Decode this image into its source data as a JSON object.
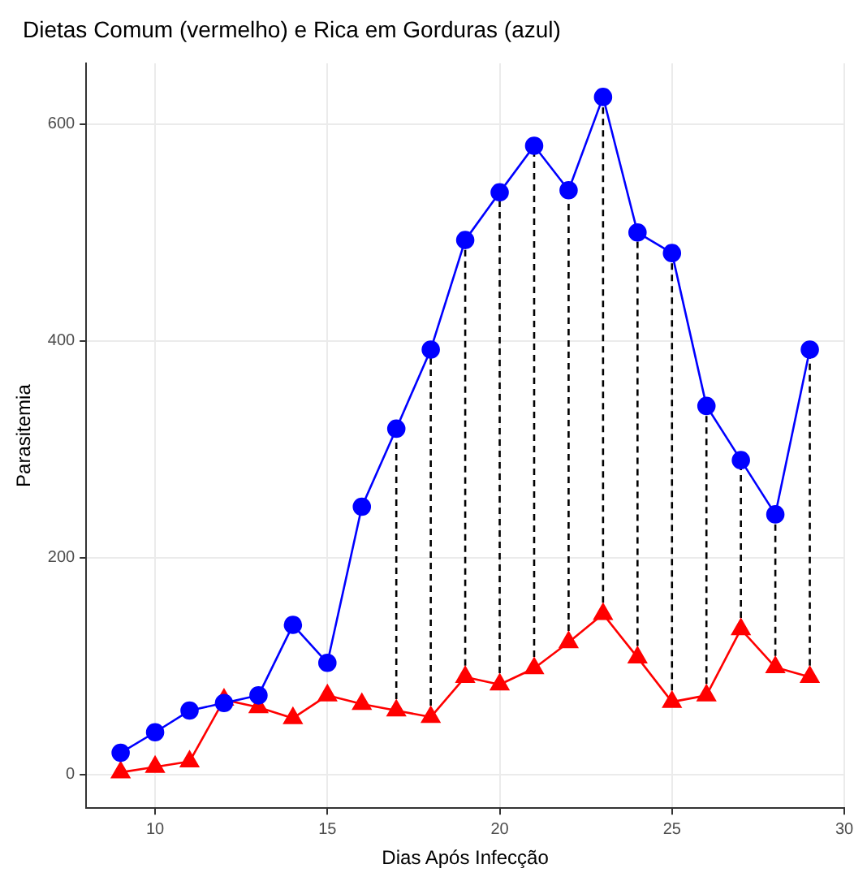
{
  "chart_data": {
    "type": "line",
    "title": "Dietas Comum (vermelho) e Rica em Gorduras (azul)",
    "xlabel": "Dias Após Infecção",
    "ylabel": "Parasitemia",
    "x": [
      9,
      10,
      11,
      12,
      13,
      14,
      15,
      16,
      17,
      18,
      19,
      20,
      21,
      22,
      23,
      24,
      25,
      26,
      27,
      28,
      29
    ],
    "xlim": [
      8,
      30
    ],
    "xticks": [
      10,
      15,
      20,
      25,
      30
    ],
    "ylim": [
      -31,
      656
    ],
    "yticks": [
      0,
      200,
      400,
      600
    ],
    "grid": true,
    "legend": false,
    "series": [
      {
        "color": "#0000ff",
        "marker": "circle",
        "values": [
          20,
          39,
          59,
          66,
          73,
          138,
          103,
          247,
          319,
          392,
          493,
          537,
          580,
          539,
          625,
          500,
          481,
          340,
          290,
          240,
          392
        ]
      },
      {
        "color": "#ff0000",
        "marker": "triangle",
        "values": [
          2,
          7,
          12,
          69,
          62,
          52,
          73,
          65,
          59,
          53,
          90,
          83,
          98,
          122,
          148,
          108,
          67,
          73,
          134,
          99,
          90
        ]
      },
      {
        "color": "#000000",
        "marker": "none",
        "line_style": "dashed",
        "x": [
          17,
          17
        ],
        "values": [
          59,
          319
        ]
      },
      {
        "color": "#000000",
        "marker": "none",
        "line_style": "dashed",
        "x": [
          18,
          18
        ],
        "values": [
          53,
          392
        ]
      },
      {
        "color": "#000000",
        "marker": "none",
        "line_style": "dashed",
        "x": [
          19,
          19
        ],
        "values": [
          90,
          493
        ]
      },
      {
        "color": "#000000",
        "marker": "none",
        "line_style": "dashed",
        "x": [
          20,
          20
        ],
        "values": [
          83,
          537
        ]
      },
      {
        "color": "#000000",
        "marker": "none",
        "line_style": "dashed",
        "x": [
          21,
          21
        ],
        "values": [
          98,
          580
        ]
      },
      {
        "color": "#000000",
        "marker": "none",
        "line_style": "dashed",
        "x": [
          22,
          22
        ],
        "values": [
          122,
          539
        ]
      },
      {
        "color": "#000000",
        "marker": "none",
        "line_style": "dashed",
        "x": [
          23,
          23
        ],
        "values": [
          148,
          625
        ]
      },
      {
        "color": "#000000",
        "marker": "none",
        "line_style": "dashed",
        "x": [
          24,
          24
        ],
        "values": [
          108,
          500
        ]
      },
      {
        "color": "#000000",
        "marker": "none",
        "line_style": "dashed",
        "x": [
          25,
          25
        ],
        "values": [
          67,
          481
        ]
      },
      {
        "color": "#000000",
        "marker": "none",
        "line_style": "dashed",
        "x": [
          26,
          26
        ],
        "values": [
          73,
          340
        ]
      },
      {
        "color": "#000000",
        "marker": "none",
        "line_style": "dashed",
        "x": [
          27,
          27
        ],
        "values": [
          134,
          290
        ]
      },
      {
        "color": "#000000",
        "marker": "none",
        "line_style": "dashed",
        "x": [
          28,
          28
        ],
        "values": [
          99,
          240
        ]
      },
      {
        "color": "#000000",
        "marker": "none",
        "line_style": "dashed",
        "x": [
          29,
          29
        ],
        "values": [
          90,
          392
        ]
      }
    ]
  }
}
